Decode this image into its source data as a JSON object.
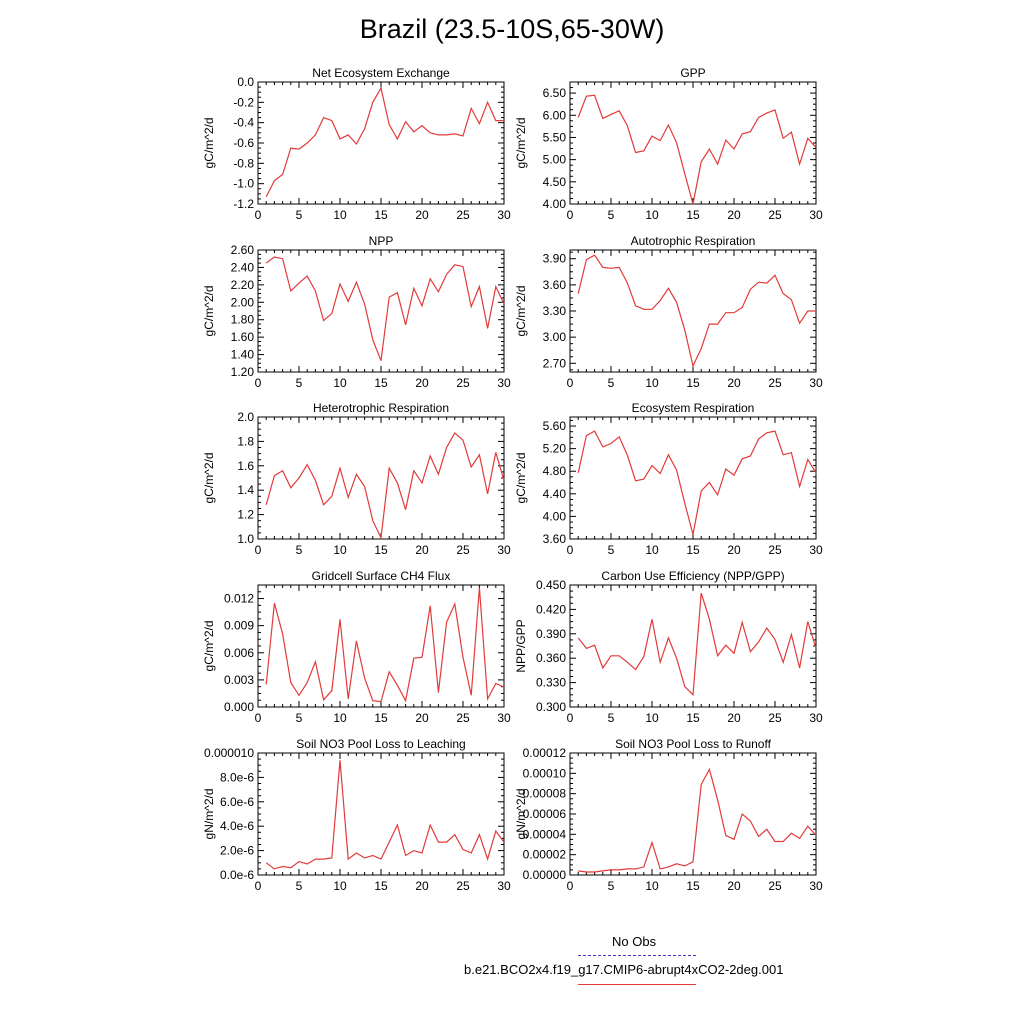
{
  "figure": {
    "title": "Brazil (23.5-10S,65-30W)"
  },
  "legend": {
    "obs_label": "No Obs",
    "model_label": "b.e21.BCO2x4.f19_g17.CMIP6-abrupt4xCO2-2deg.001",
    "obs_color": "#3c3cc8",
    "model_color": "#e23a3a"
  },
  "chart_data": [
    {
      "type": "line",
      "title": "Net Ecosystem Exchange",
      "ylabel": "gC/m^2/d",
      "xlim": [
        0,
        30
      ],
      "ylim": [
        -1.2,
        0.0
      ],
      "xticks": [
        0,
        5,
        10,
        15,
        20,
        25,
        30
      ],
      "xtick_labels": [
        "0",
        "5",
        "10",
        "15",
        "20",
        "25",
        "30"
      ],
      "yticks": [
        -1.2,
        -1.0,
        -0.8,
        -0.6,
        -0.4,
        -0.2,
        0.0
      ],
      "ytick_labels": [
        "-1.2",
        "-1.0",
        "-0.8",
        "-0.6",
        "-0.4",
        "-0.2",
        "0.0"
      ],
      "x": [
        1,
        2,
        3,
        4,
        5,
        6,
        7,
        8,
        9,
        10,
        11,
        12,
        13,
        14,
        15,
        16,
        17,
        18,
        19,
        20,
        21,
        22,
        23,
        24,
        25,
        26,
        27,
        28,
        29,
        30
      ],
      "values": [
        -1.13,
        -0.97,
        -0.91,
        -0.65,
        -0.66,
        -0.6,
        -0.52,
        -0.35,
        -0.38,
        -0.56,
        -0.52,
        -0.61,
        -0.46,
        -0.2,
        -0.06,
        -0.42,
        -0.56,
        -0.39,
        -0.49,
        -0.43,
        -0.5,
        -0.52,
        -0.52,
        -0.51,
        -0.53,
        -0.26,
        -0.41,
        -0.2,
        -0.38,
        -0.38
      ]
    },
    {
      "type": "line",
      "title": "GPP",
      "ylabel": "gC/m^2/d",
      "xlim": [
        0,
        30
      ],
      "ylim": [
        4.0,
        6.75
      ],
      "xticks": [
        0,
        5,
        10,
        15,
        20,
        25,
        30
      ],
      "xtick_labels": [
        "0",
        "5",
        "10",
        "15",
        "20",
        "25",
        "30"
      ],
      "yticks": [
        4.0,
        4.5,
        5.0,
        5.5,
        6.0,
        6.5
      ],
      "ytick_labels": [
        "4.00",
        "4.50",
        "5.00",
        "5.50",
        "6.00",
        "6.50"
      ],
      "x": [
        1,
        2,
        3,
        4,
        5,
        6,
        7,
        8,
        9,
        10,
        11,
        12,
        13,
        14,
        15,
        16,
        17,
        18,
        19,
        20,
        21,
        22,
        23,
        24,
        25,
        26,
        27,
        28,
        29,
        30
      ],
      "values": [
        5.95,
        6.43,
        6.45,
        5.93,
        6.02,
        6.1,
        5.76,
        5.16,
        5.2,
        5.53,
        5.43,
        5.78,
        5.38,
        4.68,
        4.0,
        4.95,
        5.24,
        4.9,
        5.44,
        5.24,
        5.58,
        5.63,
        5.95,
        6.05,
        6.12,
        5.48,
        5.62,
        4.9,
        5.48,
        5.27
      ]
    },
    {
      "type": "line",
      "title": "NPP",
      "ylabel": "gC/m^2/d",
      "xlim": [
        0,
        30
      ],
      "ylim": [
        1.2,
        2.6
      ],
      "xticks": [
        0,
        5,
        10,
        15,
        20,
        25,
        30
      ],
      "xtick_labels": [
        "0",
        "5",
        "10",
        "15",
        "20",
        "25",
        "30"
      ],
      "yticks": [
        1.2,
        1.4,
        1.6,
        1.8,
        2.0,
        2.2,
        2.4,
        2.6
      ],
      "ytick_labels": [
        "1.20",
        "1.40",
        "1.60",
        "1.80",
        "2.00",
        "2.20",
        "2.40",
        "2.60"
      ],
      "x": [
        1,
        2,
        3,
        4,
        5,
        6,
        7,
        8,
        9,
        10,
        11,
        12,
        13,
        14,
        15,
        16,
        17,
        18,
        19,
        20,
        21,
        22,
        23,
        24,
        25,
        26,
        27,
        28,
        29,
        30
      ],
      "values": [
        2.45,
        2.52,
        2.5,
        2.13,
        2.22,
        2.3,
        2.13,
        1.79,
        1.87,
        2.21,
        2.01,
        2.23,
        1.98,
        1.57,
        1.33,
        2.06,
        2.11,
        1.74,
        2.16,
        1.96,
        2.27,
        2.12,
        2.32,
        2.43,
        2.41,
        1.95,
        2.18,
        1.7,
        2.18,
        1.98
      ]
    },
    {
      "type": "line",
      "title": "Autotrophic Respiration",
      "ylabel": "gC/m^2/d",
      "xlim": [
        0,
        30
      ],
      "ylim": [
        2.6,
        4.0
      ],
      "xticks": [
        0,
        5,
        10,
        15,
        20,
        25,
        30
      ],
      "xtick_labels": [
        "0",
        "5",
        "10",
        "15",
        "20",
        "25",
        "30"
      ],
      "yticks": [
        2.7,
        3.0,
        3.3,
        3.6,
        3.9
      ],
      "ytick_labels": [
        "2.70",
        "3.00",
        "3.30",
        "3.60",
        "3.90"
      ],
      "x": [
        1,
        2,
        3,
        4,
        5,
        6,
        7,
        8,
        9,
        10,
        11,
        12,
        13,
        14,
        15,
        16,
        17,
        18,
        19,
        20,
        21,
        22,
        23,
        24,
        25,
        26,
        27,
        28,
        29,
        30
      ],
      "values": [
        3.5,
        3.89,
        3.94,
        3.8,
        3.79,
        3.8,
        3.62,
        3.36,
        3.32,
        3.32,
        3.42,
        3.56,
        3.4,
        3.08,
        2.67,
        2.87,
        3.15,
        3.15,
        3.28,
        3.28,
        3.34,
        3.55,
        3.63,
        3.62,
        3.71,
        3.5,
        3.43,
        3.16,
        3.3,
        3.3
      ]
    },
    {
      "type": "line",
      "title": "Heterotrophic Respiration",
      "ylabel": "gC/m^2/d",
      "xlim": [
        0,
        30
      ],
      "ylim": [
        1.0,
        2.0
      ],
      "xticks": [
        0,
        5,
        10,
        15,
        20,
        25,
        30
      ],
      "xtick_labels": [
        "0",
        "5",
        "10",
        "15",
        "20",
        "25",
        "30"
      ],
      "yticks": [
        1.0,
        1.2,
        1.4,
        1.6,
        1.8,
        2.0
      ],
      "ytick_labels": [
        "1.0",
        "1.2",
        "1.4",
        "1.6",
        "1.8",
        "2.0"
      ],
      "x": [
        1,
        2,
        3,
        4,
        5,
        6,
        7,
        8,
        9,
        10,
        11,
        12,
        13,
        14,
        15,
        16,
        17,
        18,
        19,
        20,
        21,
        22,
        23,
        24,
        25,
        26,
        27,
        28,
        29,
        30
      ],
      "values": [
        1.28,
        1.52,
        1.56,
        1.42,
        1.5,
        1.61,
        1.48,
        1.28,
        1.35,
        1.58,
        1.34,
        1.53,
        1.43,
        1.15,
        1.01,
        1.58,
        1.46,
        1.24,
        1.56,
        1.46,
        1.68,
        1.53,
        1.75,
        1.87,
        1.81,
        1.59,
        1.69,
        1.37,
        1.71,
        1.48
      ]
    },
    {
      "type": "line",
      "title": "Ecosystem Respiration",
      "ylabel": "gC/m^2/d",
      "xlim": [
        0,
        30
      ],
      "ylim": [
        3.6,
        5.76
      ],
      "xticks": [
        0,
        5,
        10,
        15,
        20,
        25,
        30
      ],
      "xtick_labels": [
        "0",
        "5",
        "10",
        "15",
        "20",
        "25",
        "30"
      ],
      "yticks": [
        3.6,
        4.0,
        4.4,
        4.8,
        5.2,
        5.6
      ],
      "ytick_labels": [
        "3.60",
        "4.00",
        "4.40",
        "4.80",
        "5.20",
        "5.60"
      ],
      "x": [
        1,
        2,
        3,
        4,
        5,
        6,
        7,
        8,
        9,
        10,
        11,
        12,
        13,
        14,
        15,
        16,
        17,
        18,
        19,
        20,
        21,
        22,
        23,
        24,
        25,
        26,
        27,
        28,
        29,
        30
      ],
      "values": [
        4.77,
        5.43,
        5.51,
        5.23,
        5.29,
        5.41,
        5.08,
        4.63,
        4.66,
        4.9,
        4.76,
        5.09,
        4.82,
        4.23,
        3.68,
        4.45,
        4.6,
        4.38,
        4.84,
        4.73,
        5.02,
        5.07,
        5.37,
        5.48,
        5.51,
        5.09,
        5.13,
        4.53,
        5.01,
        4.77
      ]
    },
    {
      "type": "line",
      "title": "Gridcell Surface CH4 Flux",
      "ylabel": "gC/m^2/d",
      "xlim": [
        0,
        30
      ],
      "ylim": [
        0.0,
        0.0135
      ],
      "xticks": [
        0,
        5,
        10,
        15,
        20,
        25,
        30
      ],
      "xtick_labels": [
        "0",
        "5",
        "10",
        "15",
        "20",
        "25",
        "30"
      ],
      "yticks": [
        0.0,
        0.003,
        0.006,
        0.009,
        0.012
      ],
      "ytick_labels": [
        "0.000",
        "0.003",
        "0.006",
        "0.009",
        "0.012"
      ],
      "x": [
        1,
        2,
        3,
        4,
        5,
        6,
        7,
        8,
        9,
        10,
        11,
        12,
        13,
        14,
        15,
        16,
        17,
        18,
        19,
        20,
        21,
        22,
        23,
        24,
        25,
        26,
        27,
        28,
        29,
        30
      ],
      "values": [
        0.0025,
        0.0115,
        0.0081,
        0.0027,
        0.0013,
        0.0027,
        0.005,
        0.0008,
        0.0018,
        0.0097,
        0.0009,
        0.0073,
        0.0032,
        0.0007,
        0.0006,
        0.0039,
        0.0024,
        0.0007,
        0.0054,
        0.0055,
        0.0112,
        0.0016,
        0.0094,
        0.0114,
        0.0055,
        0.0013,
        0.0132,
        0.0009,
        0.0026,
        0.0022
      ]
    },
    {
      "type": "line",
      "title": "Carbon Use Efficiency (NPP/GPP)",
      "ylabel": "NPP/GPP",
      "xlim": [
        0,
        30
      ],
      "ylim": [
        0.3,
        0.45
      ],
      "xticks": [
        0,
        5,
        10,
        15,
        20,
        25,
        30
      ],
      "xtick_labels": [
        "0",
        "5",
        "10",
        "15",
        "20",
        "25",
        "30"
      ],
      "yticks": [
        0.3,
        0.33,
        0.36,
        0.39,
        0.42,
        0.45
      ],
      "ytick_labels": [
        "0.300",
        "0.330",
        "0.360",
        "0.390",
        "0.420",
        "0.450"
      ],
      "x": [
        1,
        2,
        3,
        4,
        5,
        6,
        7,
        8,
        9,
        10,
        11,
        12,
        13,
        14,
        15,
        16,
        17,
        18,
        19,
        20,
        21,
        22,
        23,
        24,
        25,
        26,
        27,
        28,
        29,
        30
      ],
      "values": [
        0.385,
        0.372,
        0.376,
        0.348,
        0.363,
        0.363,
        0.355,
        0.346,
        0.362,
        0.408,
        0.355,
        0.385,
        0.36,
        0.325,
        0.315,
        0.44,
        0.408,
        0.363,
        0.376,
        0.366,
        0.404,
        0.368,
        0.38,
        0.397,
        0.383,
        0.355,
        0.389,
        0.348,
        0.405,
        0.372
      ]
    },
    {
      "type": "line",
      "title": "Soil NO3 Pool Loss to Leaching",
      "ylabel": "gN/m^2/d",
      "xlim": [
        0,
        30
      ],
      "ylim": [
        0.0,
        1e-05
      ],
      "xticks": [
        0,
        5,
        10,
        15,
        20,
        25,
        30
      ],
      "xtick_labels": [
        "0",
        "5",
        "10",
        "15",
        "20",
        "25",
        "30"
      ],
      "yticks": [
        0.0,
        2e-06,
        4e-06,
        6e-06,
        8e-06,
        1e-05
      ],
      "ytick_labels": [
        "0.0e-6",
        "2.0e-6",
        "4.0e-6",
        "6.0e-6",
        "8.0e-6",
        "0.000010"
      ],
      "x": [
        1,
        2,
        3,
        4,
        5,
        6,
        7,
        8,
        9,
        10,
        11,
        12,
        13,
        14,
        15,
        16,
        17,
        18,
        19,
        20,
        21,
        22,
        23,
        24,
        25,
        26,
        27,
        28,
        29,
        30
      ],
      "values": [
        1e-06,
        5e-07,
        7e-07,
        6e-07,
        1.1e-06,
        9e-07,
        1.3e-06,
        1.3e-06,
        1.4e-06,
        9.4e-06,
        1.3e-06,
        1.8e-06,
        1.4e-06,
        1.6e-06,
        1.3e-06,
        2.7e-06,
        4.1e-06,
        1.6e-06,
        2e-06,
        1.8e-06,
        4.1e-06,
        2.7e-06,
        2.7e-06,
        3.3e-06,
        2.1e-06,
        1.8e-06,
        3.3e-06,
        1.3e-06,
        3.6e-06,
        2.7e-06
      ]
    },
    {
      "type": "line",
      "title": "Soil NO3 Pool Loss to Runoff",
      "ylabel": "gN/m^2/d",
      "xlim": [
        0,
        30
      ],
      "ylim": [
        0.0,
        0.00012
      ],
      "xticks": [
        0,
        5,
        10,
        15,
        20,
        25,
        30
      ],
      "xtick_labels": [
        "0",
        "5",
        "10",
        "15",
        "20",
        "25",
        "30"
      ],
      "yticks": [
        0.0,
        2e-05,
        4e-05,
        6e-05,
        8e-05,
        0.0001,
        0.00012
      ],
      "ytick_labels": [
        "0.00000",
        "0.00002",
        "0.00004",
        "0.00006",
        "0.00008",
        "0.00010",
        "0.00012"
      ],
      "x": [
        1,
        2,
        3,
        4,
        5,
        6,
        7,
        8,
        9,
        10,
        11,
        12,
        13,
        14,
        15,
        16,
        17,
        18,
        19,
        20,
        21,
        22,
        23,
        24,
        25,
        26,
        27,
        28,
        29,
        30
      ],
      "values": [
        4e-06,
        3e-06,
        3e-06,
        4e-06,
        5e-06,
        5e-06,
        6e-06,
        6e-06,
        8e-06,
        3.2e-05,
        6e-06,
        8e-06,
        1.1e-05,
        9e-06,
        1.3e-05,
        8.9e-05,
        0.000104,
        7.4e-05,
        3.9e-05,
        3.5e-05,
        6e-05,
        5.3e-05,
        3.8e-05,
        4.5e-05,
        3.3e-05,
        3.3e-05,
        4.1e-05,
        3.6e-05,
        4.8e-05,
        3.9e-05
      ]
    }
  ]
}
